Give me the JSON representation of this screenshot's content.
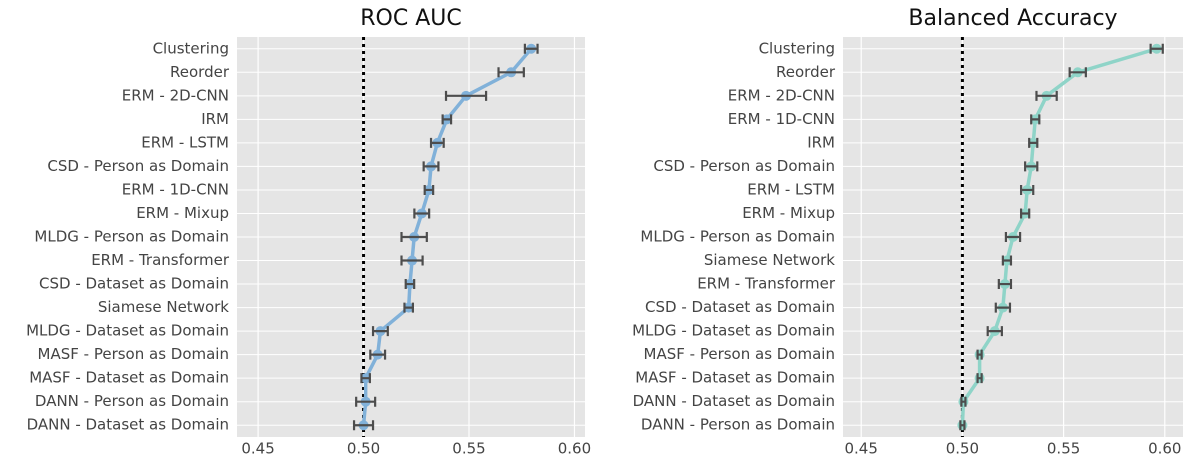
{
  "chart_data": [
    {
      "type": "pointplot",
      "title": "ROC AUC",
      "categories": [
        "Clustering",
        "Reorder",
        "ERM - 2D-CNN",
        "IRM",
        "ERM - LSTM",
        "CSD - Person as Domain",
        "ERM - 1D-CNN",
        "ERM - Mixup",
        "MLDG - Person as Domain",
        "ERM - Transformer",
        "CSD - Dataset as Domain",
        "Siamese Network",
        "MLDG - Dataset as Domain",
        "MASF - Person as Domain",
        "MASF - Dataset as Domain",
        "DANN - Person as Domain",
        "DANN - Dataset as Domain"
      ],
      "values": [
        0.5795,
        0.57,
        0.5486,
        0.5395,
        0.535,
        0.532,
        0.531,
        0.5276,
        0.524,
        0.523,
        0.522,
        0.5214,
        0.508,
        0.5067,
        0.501,
        0.501,
        0.5
      ],
      "errors": [
        0.003,
        0.006,
        0.0095,
        0.002,
        0.003,
        0.0035,
        0.002,
        0.0035,
        0.006,
        0.005,
        0.002,
        0.002,
        0.0035,
        0.0035,
        0.002,
        0.0045,
        0.0045
      ],
      "color": "#81b1d9",
      "ref_line": 0.5,
      "xlim": [
        0.44,
        0.605
      ],
      "xticks": [
        {
          "value": 0.45,
          "label": "0.45"
        },
        {
          "value": 0.5,
          "label": "0.50"
        },
        {
          "value": 0.55,
          "label": "0.55"
        },
        {
          "value": 0.6,
          "label": "0.60"
        }
      ],
      "grid": true
    },
    {
      "type": "pointplot",
      "title": "Balanced Accuracy",
      "categories": [
        "Clustering",
        "Reorder",
        "ERM - 2D-CNN",
        "ERM - 1D-CNN",
        "IRM",
        "CSD - Person as Domain",
        "ERM - LSTM",
        "ERM - Mixup",
        "MLDG - Person as Domain",
        "Siamese Network",
        "ERM - Transformer",
        "CSD - Dataset as Domain",
        "MLDG - Dataset as Domain",
        "MASF - Person as Domain",
        "MASF - Dataset as Domain",
        "DANN - Dataset as Domain",
        "DANN - Person as Domain"
      ],
      "values": [
        0.596,
        0.557,
        0.5416,
        0.536,
        0.535,
        0.534,
        0.532,
        0.531,
        0.525,
        0.522,
        0.521,
        0.52,
        0.516,
        0.5085,
        0.5085,
        0.5005,
        0.5
      ],
      "errors": [
        0.003,
        0.004,
        0.005,
        0.002,
        0.002,
        0.003,
        0.003,
        0.002,
        0.0035,
        0.002,
        0.003,
        0.0035,
        0.0035,
        0.001,
        0.001,
        0.001,
        0.001
      ],
      "color": "#8fd4c8",
      "ref_line": 0.5,
      "xlim": [
        0.441,
        0.609
      ],
      "xticks": [
        {
          "value": 0.45,
          "label": "0.45"
        },
        {
          "value": 0.5,
          "label": "0.50"
        },
        {
          "value": 0.55,
          "label": "0.55"
        },
        {
          "value": 0.6,
          "label": "0.60"
        }
      ],
      "grid": true
    }
  ]
}
